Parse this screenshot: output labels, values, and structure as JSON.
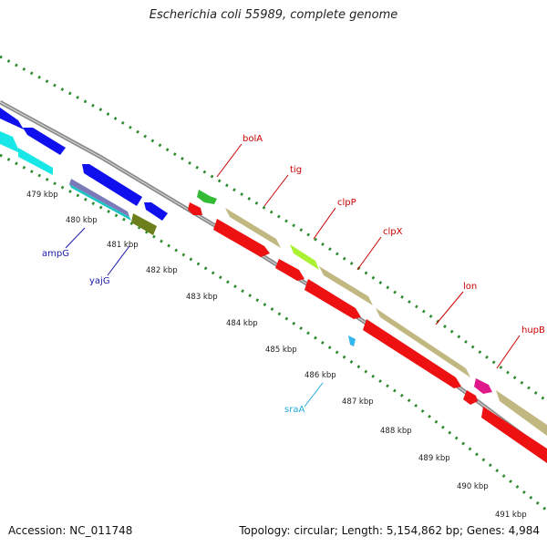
{
  "title": "Escherichia coli 55989, complete genome",
  "footer": {
    "accession": "Accession: NC_011748",
    "summary": "Topology: circular; Length: 5,154,862 bp; Genes: 4,984"
  },
  "ticks": [
    "479 kbp",
    "480 kbp",
    "481 kbp",
    "482 kbp",
    "483 kbp",
    "484 kbp",
    "485 kbp",
    "486 kbp",
    "487 kbp",
    "488 kbp",
    "489 kbp",
    "490 kbp",
    "491 kbp"
  ],
  "gene_labels": {
    "bolA": "bolA",
    "tig": "tig",
    "clpP": "clpP",
    "clpX": "clpX",
    "lon": "lon",
    "hupB": "hupB",
    "ampG": "ampG",
    "yajG": "yajG",
    "sraA": "sraA"
  },
  "colors": {
    "blue": "#1010ee",
    "cyan": "#19e6e6",
    "red": "#ee1111",
    "khaki": "#c0b880",
    "green": "#33bb33",
    "olive": "#6b7f1a",
    "lime": "#aaf033",
    "magenta": "#e0198a",
    "lightblue": "#33b5ee",
    "backbone": "#8c8c8c",
    "dots": "#2e8b2e",
    "label_red": "#cc0000",
    "label_blue": "#1a1aaa",
    "label_cyan": "#22aadd"
  }
}
